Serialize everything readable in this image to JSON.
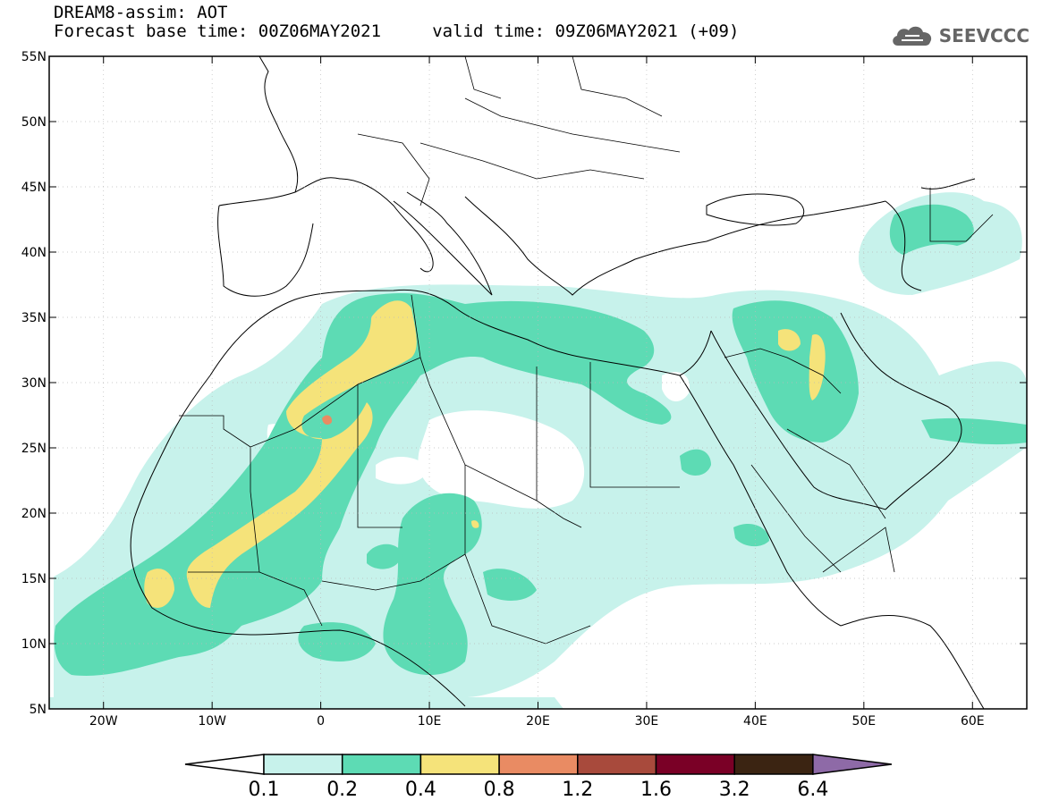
{
  "header": {
    "line1": "DREAM8-assim: AOT",
    "line2": "Forecast base time: 00Z06MAY2021     valid time: 09Z06MAY2021 (+09)"
  },
  "logo": {
    "text": "SEEVCCC",
    "icon": "cloud-icon"
  },
  "map": {
    "lon_range": [
      -25,
      65
    ],
    "lat_range": [
      5,
      55
    ],
    "lon_ticks": [
      {
        "value": -20,
        "label": "20W"
      },
      {
        "value": -10,
        "label": "10W"
      },
      {
        "value": 0,
        "label": "0"
      },
      {
        "value": 10,
        "label": "10E"
      },
      {
        "value": 20,
        "label": "20E"
      },
      {
        "value": 30,
        "label": "30E"
      },
      {
        "value": 40,
        "label": "40E"
      },
      {
        "value": 50,
        "label": "50E"
      },
      {
        "value": 60,
        "label": "60E"
      }
    ],
    "lat_ticks": [
      {
        "value": 55,
        "label": "55N"
      },
      {
        "value": 50,
        "label": "50N"
      },
      {
        "value": 45,
        "label": "45N"
      },
      {
        "value": 40,
        "label": "40N"
      },
      {
        "value": 35,
        "label": "35N"
      },
      {
        "value": 30,
        "label": "30N"
      },
      {
        "value": 25,
        "label": "25N"
      },
      {
        "value": 20,
        "label": "20N"
      },
      {
        "value": 15,
        "label": "15N"
      },
      {
        "value": 10,
        "label": "10N"
      },
      {
        "value": 5,
        "label": "5N"
      }
    ]
  },
  "colorbar": {
    "levels": [
      "0.1",
      "0.2",
      "0.4",
      "0.8",
      "1.2",
      "1.6",
      "3.2",
      "6.4"
    ],
    "colors": [
      "#ffffff",
      "#c7f2eb",
      "#5ddbb4",
      "#f5e37a",
      "#e98b63",
      "#a84a3c",
      "#7a0026",
      "#3b2412",
      "#8e6aa7"
    ]
  }
}
